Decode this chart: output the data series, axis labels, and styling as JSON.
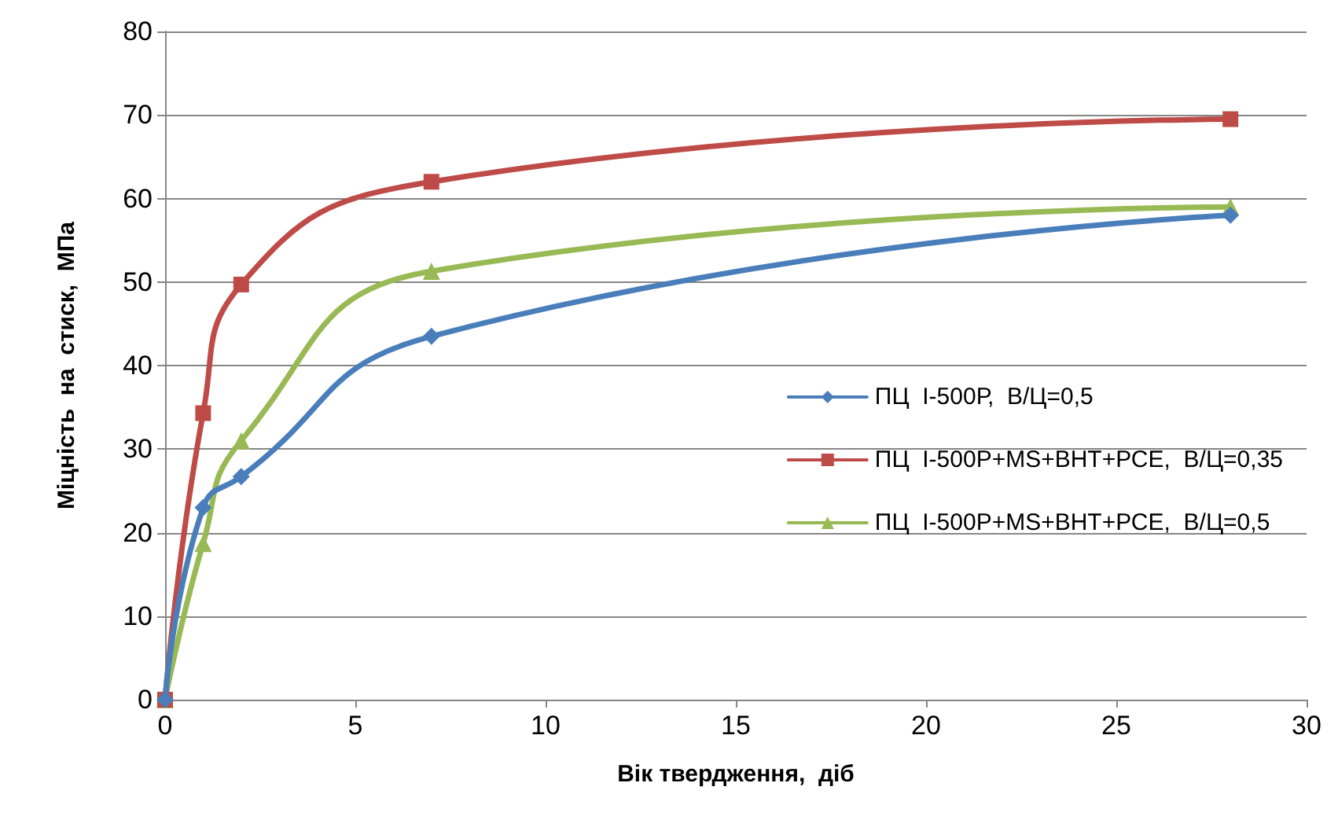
{
  "chart_data": {
    "type": "line",
    "xlabel": "Вік твердження,  діб",
    "ylabel": "Міцність  на  стиск,  МПа",
    "xlim": [
      0,
      30
    ],
    "xticks": [
      0,
      5,
      10,
      15,
      20,
      25,
      30
    ],
    "ylim": [
      0,
      80
    ],
    "yticks": [
      0,
      10,
      20,
      30,
      40,
      50,
      60,
      70,
      80
    ],
    "grid": "y",
    "legend": "right",
    "x": [
      0,
      1,
      2,
      7,
      28
    ],
    "series": [
      {
        "name": "ПЦ  I-500Р,  В/Ц=0,5",
        "color": "#4a7ebb",
        "marker": "diamond",
        "values": [
          0,
          23,
          26.7,
          43.5,
          58
        ]
      },
      {
        "name": "ПЦ  I-500Р+MS+ВНТ+РСЕ,  В/Ц=0,35",
        "color": "#be4b48",
        "marker": "square",
        "values": [
          0,
          34.3,
          49.7,
          62,
          69.5
        ]
      },
      {
        "name": "ПЦ  I-500Р+MS+ВНТ+РСЕ,  В/Ц=0,5",
        "color": "#98b954",
        "marker": "triangle",
        "values": [
          0,
          18.7,
          31,
          51.3,
          59
        ]
      }
    ]
  }
}
